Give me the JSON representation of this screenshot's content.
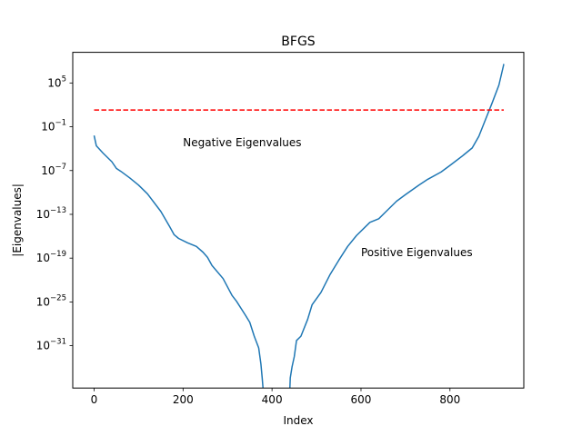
{
  "chart_data": {
    "type": "line",
    "title": "BFGS",
    "xlabel": "Index",
    "ylabel": "|Eigenvalues|",
    "xscale": "linear",
    "yscale": "log",
    "xlim": [
      -48,
      966
    ],
    "ylim_log10": [
      -36.8,
      9.2
    ],
    "grid": false,
    "legend": "none",
    "xticks": [
      {
        "value": 0,
        "label": "0"
      },
      {
        "value": 200,
        "label": "200"
      },
      {
        "value": 400,
        "label": "400"
      },
      {
        "value": 600,
        "label": "600"
      },
      {
        "value": 800,
        "label": "800"
      }
    ],
    "yticks": [
      {
        "exp": 5,
        "label": "10",
        "exp_label": "5"
      },
      {
        "exp": -1,
        "label": "10",
        "exp_label": "−1"
      },
      {
        "exp": -7,
        "label": "10",
        "exp_label": "−7"
      },
      {
        "exp": -13,
        "label": "10",
        "exp_label": "−13"
      },
      {
        "exp": -19,
        "label": "10",
        "exp_label": "−19"
      },
      {
        "exp": -25,
        "label": "10",
        "exp_label": "−25"
      },
      {
        "exp": -31,
        "label": "10",
        "exp_label": "−31"
      }
    ],
    "series": [
      {
        "color": "#1f77b4",
        "style": "solid",
        "x": [
          0,
          5,
          20,
          40,
          50,
          60,
          80,
          100,
          120,
          150,
          170,
          180,
          190,
          210,
          230,
          245,
          255,
          265,
          290,
          310,
          320,
          340,
          350,
          360,
          370,
          375,
          378,
          380
        ],
        "log10_y": [
          -2.2,
          -3.6,
          -4.6,
          -5.8,
          -6.7,
          -7.1,
          -8.0,
          -9.0,
          -10.2,
          -12.6,
          -14.7,
          -15.8,
          -16.3,
          -16.9,
          -17.4,
          -18.2,
          -18.9,
          -20.0,
          -21.8,
          -24.1,
          -24.9,
          -26.8,
          -27.8,
          -29.7,
          -31.3,
          -33.5,
          -35.5,
          -37.0
        ]
      },
      {
        "color": "#1f77b4",
        "style": "solid",
        "x": [
          440,
          441,
          445,
          450,
          455,
          465,
          480,
          490,
          510,
          530,
          550,
          570,
          590,
          620,
          640,
          660,
          680,
          700,
          730,
          750,
          780,
          800,
          830,
          850,
          865,
          880,
          895,
          910,
          920,
          921
        ],
        "log10_y": [
          -37.0,
          -35.4,
          -33.9,
          -32.5,
          -30.3,
          -29.7,
          -27.4,
          -25.4,
          -23.7,
          -21.3,
          -19.3,
          -17.4,
          -15.9,
          -14.1,
          -13.6,
          -12.4,
          -11.2,
          -10.3,
          -9.0,
          -8.2,
          -7.2,
          -6.3,
          -4.9,
          -3.9,
          -2.3,
          0.0,
          2.3,
          4.7,
          7.3,
          7.6
        ]
      },
      {
        "color": "#ff0000",
        "style": "dashed",
        "x": [
          0,
          921
        ],
        "log10_y": [
          1.3,
          1.3
        ]
      }
    ],
    "annotations": [
      {
        "text": "Negative Eigenvalues",
        "x": 200,
        "log10_y": -3.7
      },
      {
        "text": "Positive Eigenvalues",
        "x": 600,
        "log10_y": -18.7
      }
    ]
  }
}
